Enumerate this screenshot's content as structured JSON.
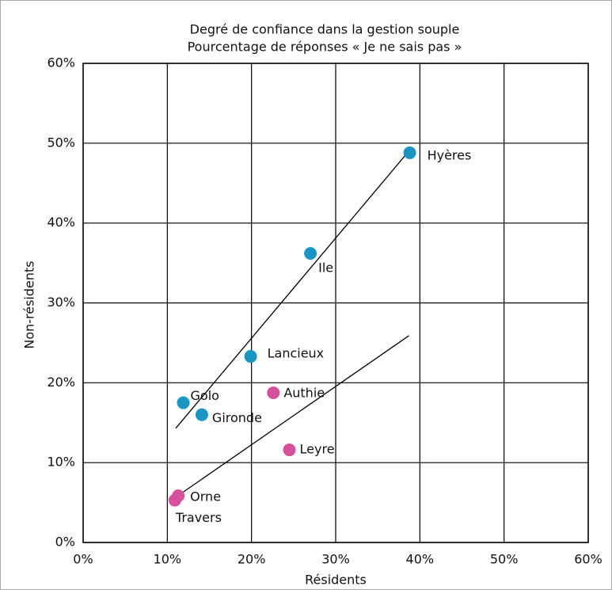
{
  "chart_data": {
    "type": "scatter",
    "title": "Degré de confiance dans la gestion souple",
    "subtitle": "Pourcentage de réponses « Je ne sais pas »",
    "xlabel": "Résidents",
    "ylabel": "Non-résidents",
    "xlim": [
      0,
      60
    ],
    "ylim": [
      0,
      60
    ],
    "xticks": [
      {
        "value": 0,
        "label": "0%"
      },
      {
        "value": 10,
        "label": "10%"
      },
      {
        "value": 20,
        "label": "20%"
      },
      {
        "value": 30,
        "label": "30%"
      },
      {
        "value": 40,
        "label": "40%"
      },
      {
        "value": 50,
        "label": "50%"
      },
      {
        "value": 60,
        "label": "60%"
      }
    ],
    "yticks": [
      {
        "value": 0,
        "label": "0%"
      },
      {
        "value": 10,
        "label": "10%"
      },
      {
        "value": 20,
        "label": "20%"
      },
      {
        "value": 30,
        "label": "30%"
      },
      {
        "value": 40,
        "label": "40%"
      },
      {
        "value": 50,
        "label": "50%"
      },
      {
        "value": 60,
        "label": "60%"
      }
    ],
    "grid": true,
    "series": [
      {
        "color": "#1b95c1",
        "labels": [
          "Hyères",
          "Ile",
          "Lancieux",
          "Golo",
          "Gironde"
        ],
        "x": [
          38.8,
          27.0,
          19.9,
          11.9,
          14.1
        ],
        "values": [
          48.8,
          36.2,
          23.3,
          17.5,
          16.0
        ]
      },
      {
        "color": "#d6509a",
        "labels": [
          "Authie",
          "Leyre",
          "Orne",
          "Travers"
        ],
        "x": [
          22.6,
          24.5,
          11.3,
          10.9
        ],
        "values": [
          18.75,
          11.6,
          5.85,
          5.3
        ]
      }
    ],
    "trendlines": [
      {
        "color": "#000000",
        "x": [
          11.0,
          38.2
        ],
        "values": [
          14.3,
          48.4
        ]
      },
      {
        "color": "#000000",
        "x": [
          11.8,
          38.7
        ],
        "values": [
          6.25,
          25.9
        ]
      }
    ]
  }
}
